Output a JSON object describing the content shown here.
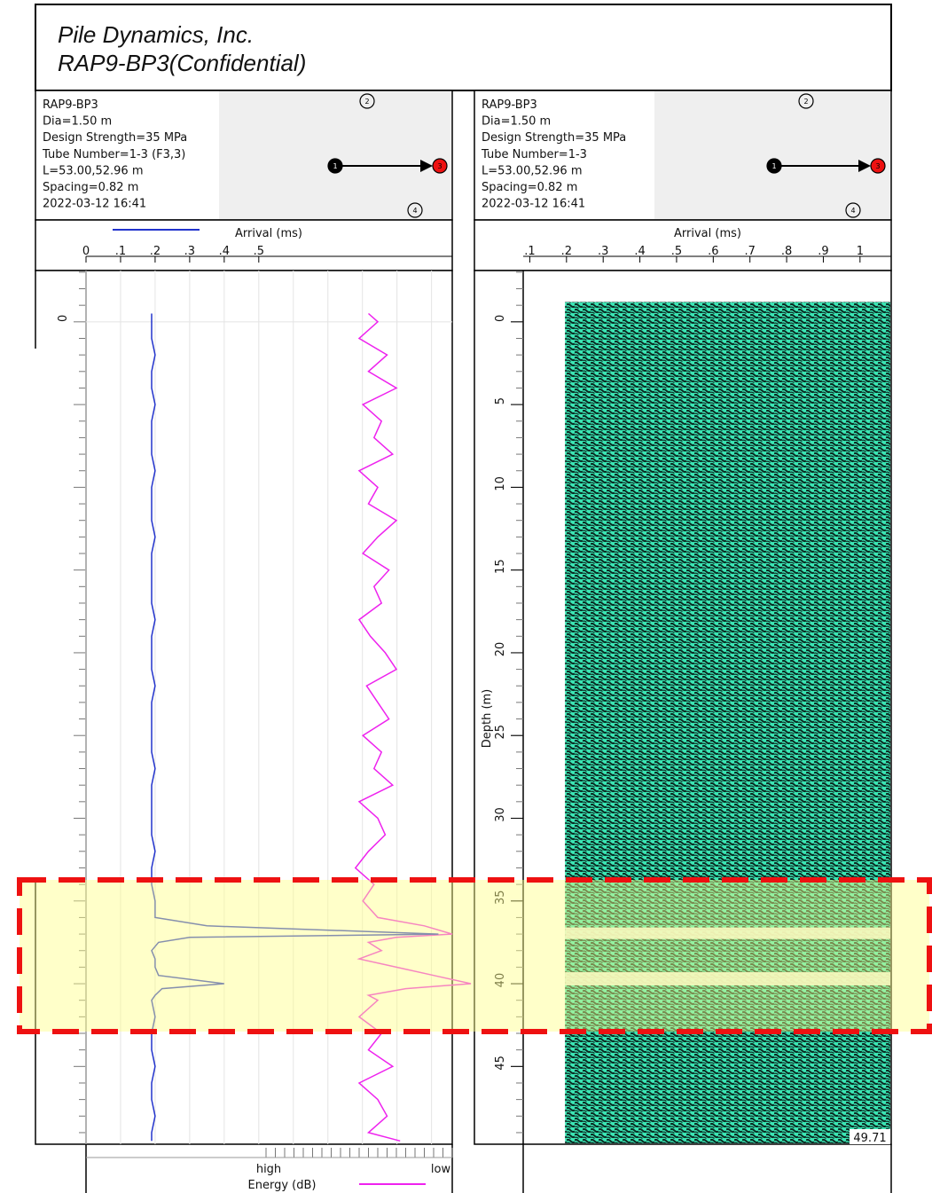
{
  "header": {
    "company": "Pile Dynamics, Inc.",
    "report": "RAP9-BP3(Confidential)"
  },
  "panels": [
    {
      "info": [
        "RAP9-BP3",
        "Dia=1.50 m",
        "Design Strength=35 MPa",
        "Tube Number=1-3 (F3,3)",
        "L=53.00,52.96 m",
        "Spacing=0.82 m",
        "2022-03-12 16:41"
      ],
      "tubes": [
        "1",
        "2",
        "3",
        "4"
      ],
      "arrival_axis": {
        "label": "Arrival (ms)",
        "color": "#2233cc",
        "xlim": [
          0,
          1.06
        ],
        "xticks": [
          0,
          {
            "value": 0.1,
            "label": ".1"
          },
          {
            "value": 0.2,
            "label": ".2"
          },
          {
            "value": 0.3,
            "label": ".3"
          },
          {
            "value": 0.4,
            "label": ".4"
          },
          {
            "value": 0.5,
            "label": ".5"
          }
        ]
      },
      "depth_axis": {
        "ylim": [
          -3.1,
          49.7
        ],
        "yticks": [
          0
        ]
      },
      "energy_axis": {
        "label": "Energy (dB)",
        "high": "high",
        "low": "low",
        "color": "#ee22ee",
        "xlim": [
          0,
          1
        ]
      },
      "depth": [
        -0.5,
        0,
        1,
        2,
        3,
        4,
        5,
        6,
        7,
        8,
        9,
        10,
        11,
        12,
        13,
        14,
        15,
        16,
        17,
        18,
        19,
        20,
        21,
        22,
        23,
        24,
        25,
        26,
        27,
        28,
        29,
        30,
        31,
        32,
        33,
        34,
        35,
        36,
        36.5,
        37,
        37.2,
        37.5,
        38,
        38.5,
        39,
        39.5,
        40,
        40.3,
        40.7,
        41,
        42,
        43,
        44,
        45,
        46,
        47,
        48,
        49,
        49.5
      ],
      "arrival": [
        0.19,
        0.19,
        0.19,
        0.2,
        0.19,
        0.19,
        0.2,
        0.19,
        0.19,
        0.19,
        0.2,
        0.19,
        0.19,
        0.19,
        0.2,
        0.19,
        0.19,
        0.19,
        0.19,
        0.2,
        0.19,
        0.19,
        0.19,
        0.2,
        0.19,
        0.19,
        0.19,
        0.19,
        0.2,
        0.19,
        0.19,
        0.19,
        0.19,
        0.2,
        0.19,
        0.19,
        0.2,
        0.2,
        0.35,
        1.02,
        0.3,
        0.21,
        0.19,
        0.2,
        0.2,
        0.21,
        0.4,
        0.22,
        0.2,
        0.19,
        0.2,
        0.19,
        0.19,
        0.2,
        0.19,
        0.19,
        0.2,
        0.19,
        0.19
      ],
      "energy": [
        0.55,
        0.6,
        0.5,
        0.65,
        0.55,
        0.7,
        0.52,
        0.62,
        0.58,
        0.68,
        0.5,
        0.6,
        0.55,
        0.7,
        0.6,
        0.52,
        0.66,
        0.58,
        0.62,
        0.5,
        0.56,
        0.64,
        0.7,
        0.54,
        0.6,
        0.66,
        0.52,
        0.62,
        0.58,
        0.68,
        0.5,
        0.6,
        0.64,
        0.55,
        0.48,
        0.58,
        0.52,
        0.6,
        0.85,
        1.0,
        0.7,
        0.55,
        0.62,
        0.5,
        0.7,
        0.9,
        1.1,
        0.75,
        0.55,
        0.6,
        0.5,
        0.62,
        0.55,
        0.68,
        0.5,
        0.6,
        0.65,
        0.55,
        0.72
      ]
    },
    {
      "info": [
        "RAP9-BP3",
        "Dia=1.50 m",
        "Design Strength=35 MPa",
        "Tube Number=1-3",
        "L=53.00,52.96 m",
        "Spacing=0.82 m",
        "2022-03-12 16:41"
      ],
      "tubes": [
        "1",
        "2",
        "3",
        "4"
      ],
      "arrival_axis": {
        "label": "Arrival (ms)",
        "xlim": [
          0.082,
          1.085
        ],
        "xticks": [
          {
            "value": 0.1,
            "label": ".1"
          },
          {
            "value": 0.2,
            "label": ".2"
          },
          {
            "value": 0.3,
            "label": ".3"
          },
          {
            "value": 0.4,
            "label": ".4"
          },
          {
            "value": 0.5,
            "label": ".5"
          },
          {
            "value": 0.6,
            "label": ".6"
          },
          {
            "value": 0.7,
            "label": ".7"
          },
          {
            "value": 0.8,
            "label": ".8"
          },
          {
            "value": 0.9,
            "label": ".9"
          },
          1
        ]
      },
      "depth_axis": {
        "label": "Depth (m)",
        "ylim": [
          -3.1,
          49.7
        ],
        "yticks": [
          0,
          5,
          10,
          15,
          20,
          25,
          30,
          35,
          40,
          45
        ]
      },
      "waterfall": {
        "start_arrival": 0.196,
        "top_depth": -1.2,
        "gaps": [
          [
            36.6,
            37.3
          ],
          [
            39.3,
            40.1
          ]
        ]
      },
      "bottom_depth": 49.71
    }
  ]
}
